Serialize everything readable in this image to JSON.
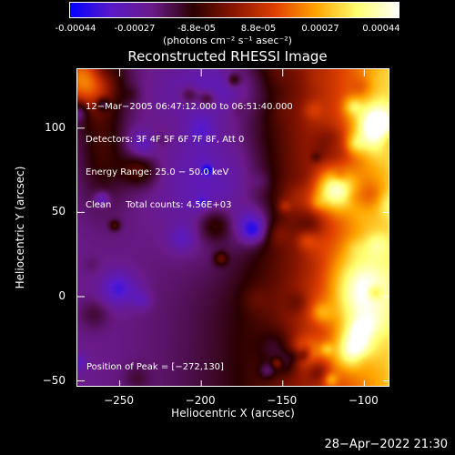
{
  "colorbar": {
    "tick_labels": [
      "-0.00044",
      "-0.00027",
      "-8.8e-05",
      "8.8e-05",
      "0.00027",
      "0.00044"
    ],
    "unit_label": "(photons cm⁻² s⁻¹ asec⁻²)",
    "colors": [
      "#0000ff",
      "#5a1ac8",
      "#6a1a8a",
      "#2a0000",
      "#8a1500",
      "#e04000",
      "#ffa500",
      "#ffff70",
      "#ffffff"
    ]
  },
  "chart_data": {
    "type": "heatmap",
    "title": "Reconstructed RHESSI Image",
    "xlabel": "Heliocentric X (arcsec)",
    "ylabel": "Heliocentric Y (arcsec)",
    "xlim": [
      -276,
      -84
    ],
    "ylim": [
      -54,
      135
    ],
    "x_ticks": [
      -250,
      -200,
      -150,
      -100
    ],
    "y_ticks": [
      -50,
      0,
      50,
      100
    ],
    "x_tick_labels": [
      "−250",
      "−200",
      "−150",
      "−100"
    ],
    "y_tick_labels": [
      "−50",
      "0",
      "50",
      "100"
    ],
    "annotations": [
      "12−Mar−2005 06:47:12.000 to 06:51:40.000",
      "Detectors: 3F 4F 5F 6F 7F 8F, Att 0",
      "Energy Range: 25.0 − 50.0 keV",
      "Clean     Total counts: 4.56E+03"
    ],
    "peak_label": "Position of Peak = [−272,130]",
    "peak": [
      -272,
      130
    ],
    "color_range": [
      -0.00044,
      0.00044
    ]
  },
  "footer": {
    "timestamp": "28−Apr−2022 21:30"
  }
}
